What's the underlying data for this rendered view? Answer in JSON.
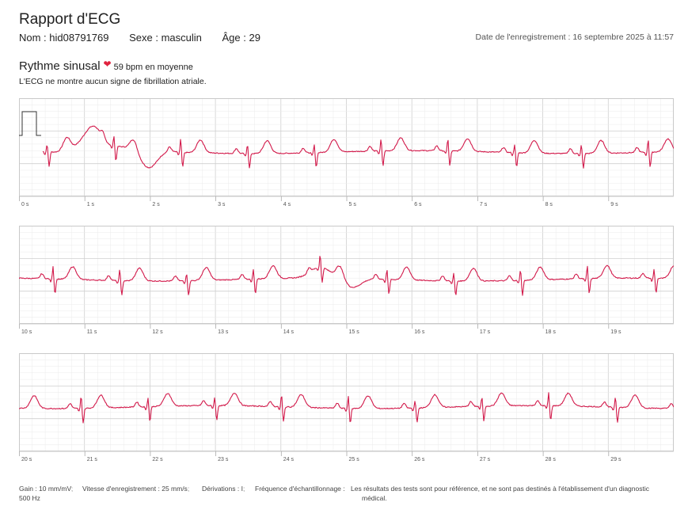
{
  "header": {
    "title": "Rapport d'ECG",
    "name": "Nom : hid08791769",
    "sex": "Sexe : masculin",
    "age": "Âge : 29",
    "recording_date": "Date de l'enregistrement : 16 septembre 2025 à 11:57"
  },
  "summary": {
    "rhythm": "Rythme sinusal",
    "heart_icon": "heart-icon",
    "bpm": "59 bpm en moyenne",
    "afib_note": "L'ECG ne montre aucun signe de fibrillation atriale."
  },
  "strips": [
    {
      "labels": [
        "0 s",
        "1 s",
        "2 s",
        "3 s",
        "4 s",
        "5 s",
        "6 s",
        "7 s",
        "8 s",
        "9 s"
      ]
    },
    {
      "labels": [
        "10 s",
        "11 s",
        "12 s",
        "13 s",
        "14 s",
        "15 s",
        "16 s",
        "17 s",
        "18 s",
        "19 s"
      ]
    },
    {
      "labels": [
        "20 s",
        "21 s",
        "22 s",
        "23 s",
        "24 s",
        "25 s",
        "26 s",
        "27 s",
        "28 s",
        "29 s"
      ]
    }
  ],
  "footer": {
    "gain": "Gain : 10 mm/mV",
    "gain_rate": "500 Hz",
    "speed": "Vitesse d'enregistrement : 25 mm/s",
    "leads": "Dérivations : I",
    "sampling": "Fréquence d'échantillonnage :",
    "disclaimer_1": "Les résultats des tests sont pour référence, et ne sont pas destinés à l'établissement d'un diagnostic",
    "disclaimer_2": "médical."
  },
  "colors": {
    "trace": "#d2194a",
    "grid_minor": "#ebebeb",
    "grid_major": "#cfcfcf",
    "heart": "#e0233f"
  }
}
